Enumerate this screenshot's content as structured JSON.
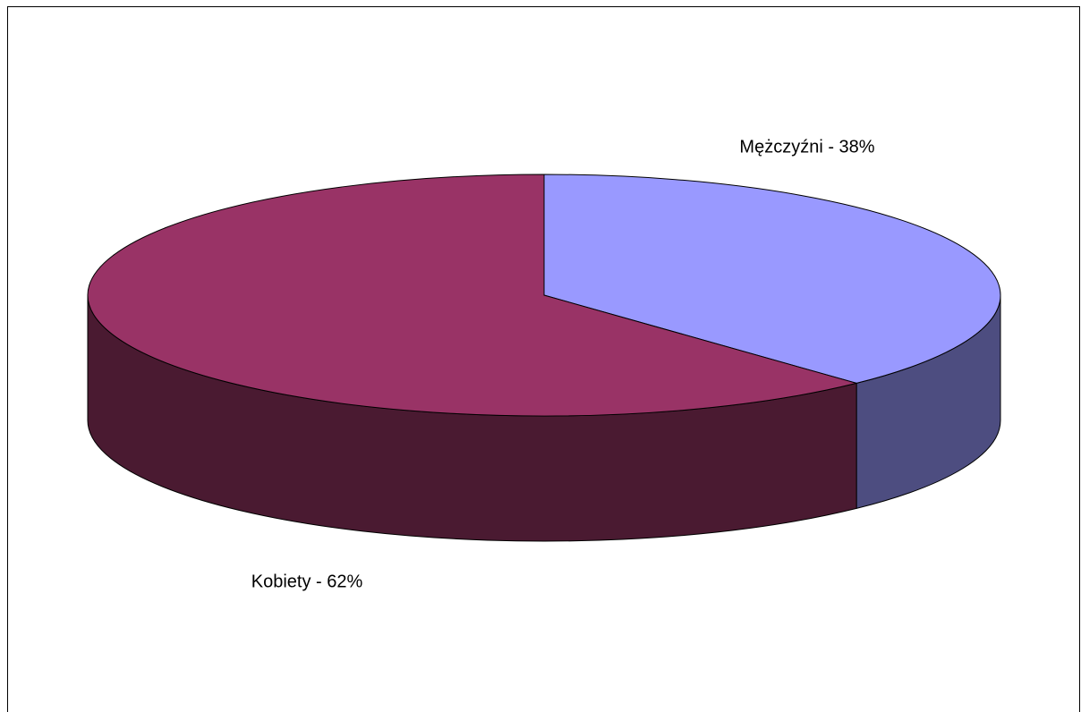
{
  "chart_data": {
    "type": "pie",
    "values": [
      38,
      62
    ],
    "value_labels": [
      "Mężczyźni - 38%",
      "Kobiety - 62%"
    ],
    "colors": [
      "#9999ff",
      "#993366"
    ],
    "side_colors": [
      "#4d4d80",
      "#4a1a31"
    ]
  }
}
